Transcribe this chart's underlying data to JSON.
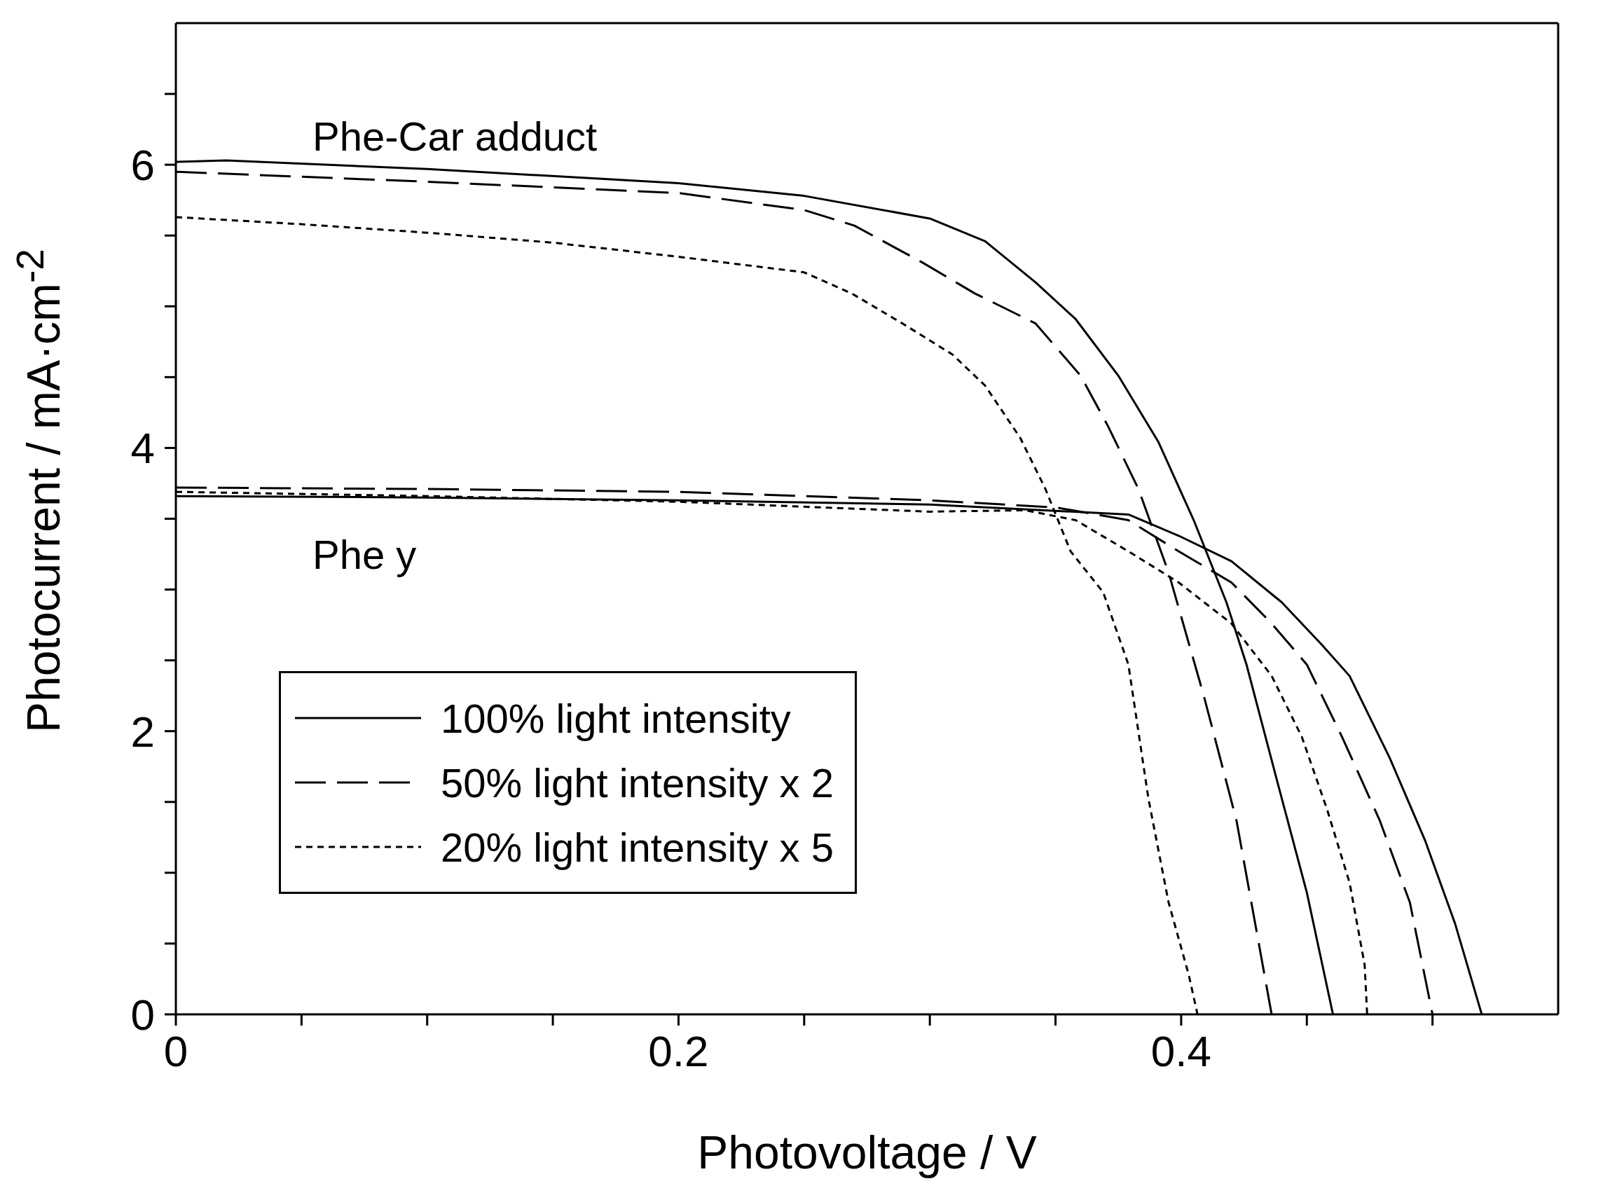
{
  "chart_data": {
    "type": "line",
    "xlabel": "Photovoltage / V",
    "ylabel": "Photocurrent / mA·cm$^{-2}$",
    "xlim": [
      0,
      0.55
    ],
    "ylim": [
      0,
      7
    ],
    "xticks": [
      0,
      {
        "value": 0.05,
        "label": null
      },
      {
        "value": 0.1,
        "label": null
      },
      {
        "value": 0.15,
        "label": null
      },
      0.2,
      {
        "value": 0.25,
        "label": null
      },
      {
        "value": 0.3,
        "label": null
      },
      {
        "value": 0.35,
        "label": null
      },
      0.4,
      {
        "value": 0.45,
        "label": null
      },
      {
        "value": 0.5,
        "label": null
      }
    ],
    "yticks": [
      0,
      {
        "value": 0.5,
        "label": null
      },
      {
        "value": 1,
        "label": null
      },
      {
        "value": 1.5,
        "label": null
      },
      2,
      {
        "value": 2.5,
        "label": null
      },
      {
        "value": 3,
        "label": null
      },
      {
        "value": 3.5,
        "label": null
      },
      4,
      {
        "value": 4.5,
        "label": null
      },
      {
        "value": 5,
        "label": null
      },
      {
        "value": 5.5,
        "label": null
      },
      6,
      {
        "value": 6.5,
        "label": null
      }
    ],
    "legend": "bottom left",
    "marker": "none",
    "annotations": [
      "Phe-Car adduct",
      "Phe y"
    ],
    "series": [
      {
        "name": "100% light intensity",
        "color": "#000000",
        "line_style": "solid",
        "x": [
          0,
          0.02,
          0.1,
          0.2,
          0.25,
          0.3,
          0.322,
          0.342,
          0.358,
          0.375,
          0.391,
          0.405,
          0.418,
          0.426,
          0.438,
          0.45,
          0.4604
        ],
        "values": [
          6.02,
          6.03,
          5.97,
          5.87,
          5.78,
          5.62,
          5.46,
          5.17,
          4.91,
          4.51,
          4.04,
          3.49,
          2.91,
          2.47,
          1.66,
          0.86,
          0
        ]
      },
      {
        "name": "50% light intensity x 2",
        "color": "#000000",
        "line_style": "dashed",
        "x": [
          0,
          0.1,
          0.2,
          0.25,
          0.27,
          0.297,
          0.318,
          0.342,
          0.36,
          0.371,
          0.383,
          0.395,
          0.409,
          0.422,
          0.436
        ],
        "values": [
          5.95,
          5.88,
          5.8,
          5.68,
          5.57,
          5.31,
          5.09,
          4.88,
          4.51,
          4.15,
          3.71,
          3.12,
          2.25,
          1.37,
          0
        ]
      },
      {
        "name": "20% light intensity x 5",
        "color": "#000000",
        "line_style": "dotted",
        "x": [
          0,
          0.05,
          0.1,
          0.15,
          0.2,
          0.25,
          0.269,
          0.289,
          0.309,
          0.322,
          0.336,
          0.346,
          0.356,
          0.369,
          0.379,
          0.387,
          0.395,
          0.403,
          0.4065
        ],
        "values": [
          5.63,
          5.58,
          5.52,
          5.45,
          5.35,
          5.24,
          5.09,
          4.88,
          4.66,
          4.44,
          4.07,
          3.71,
          3.27,
          2.98,
          2.47,
          1.52,
          0.79,
          0.28,
          0
        ]
      },
      {
        "color": "#000000",
        "line_style": "solid",
        "x": [
          0,
          0.1,
          0.2,
          0.3,
          0.379,
          0.399,
          0.42,
          0.44,
          0.456,
          0.467,
          0.483,
          0.497,
          0.509,
          0.5196
        ],
        "values": [
          3.66,
          3.65,
          3.63,
          3.6,
          3.53,
          3.38,
          3.2,
          2.91,
          2.61,
          2.39,
          1.81,
          1.23,
          0.64,
          0
        ]
      },
      {
        "color": "#000000",
        "line_style": "dashed",
        "x": [
          0,
          0.1,
          0.2,
          0.3,
          0.35,
          0.379,
          0.399,
          0.42,
          0.436,
          0.45,
          0.464,
          0.479,
          0.491,
          0.5
        ],
        "values": [
          3.72,
          3.71,
          3.69,
          3.63,
          3.58,
          3.49,
          3.27,
          3.05,
          2.76,
          2.47,
          1.96,
          1.37,
          0.79,
          0
        ]
      },
      {
        "color": "#000000",
        "line_style": "dotted",
        "x": [
          0,
          0.1,
          0.2,
          0.3,
          0.338,
          0.358,
          0.379,
          0.399,
          0.42,
          0.436,
          0.448,
          0.458,
          0.467,
          0.473,
          0.474
        ],
        "values": [
          3.69,
          3.66,
          3.62,
          3.55,
          3.56,
          3.49,
          3.27,
          3.05,
          2.76,
          2.39,
          1.96,
          1.45,
          0.93,
          0.35,
          0
        ]
      }
    ]
  }
}
